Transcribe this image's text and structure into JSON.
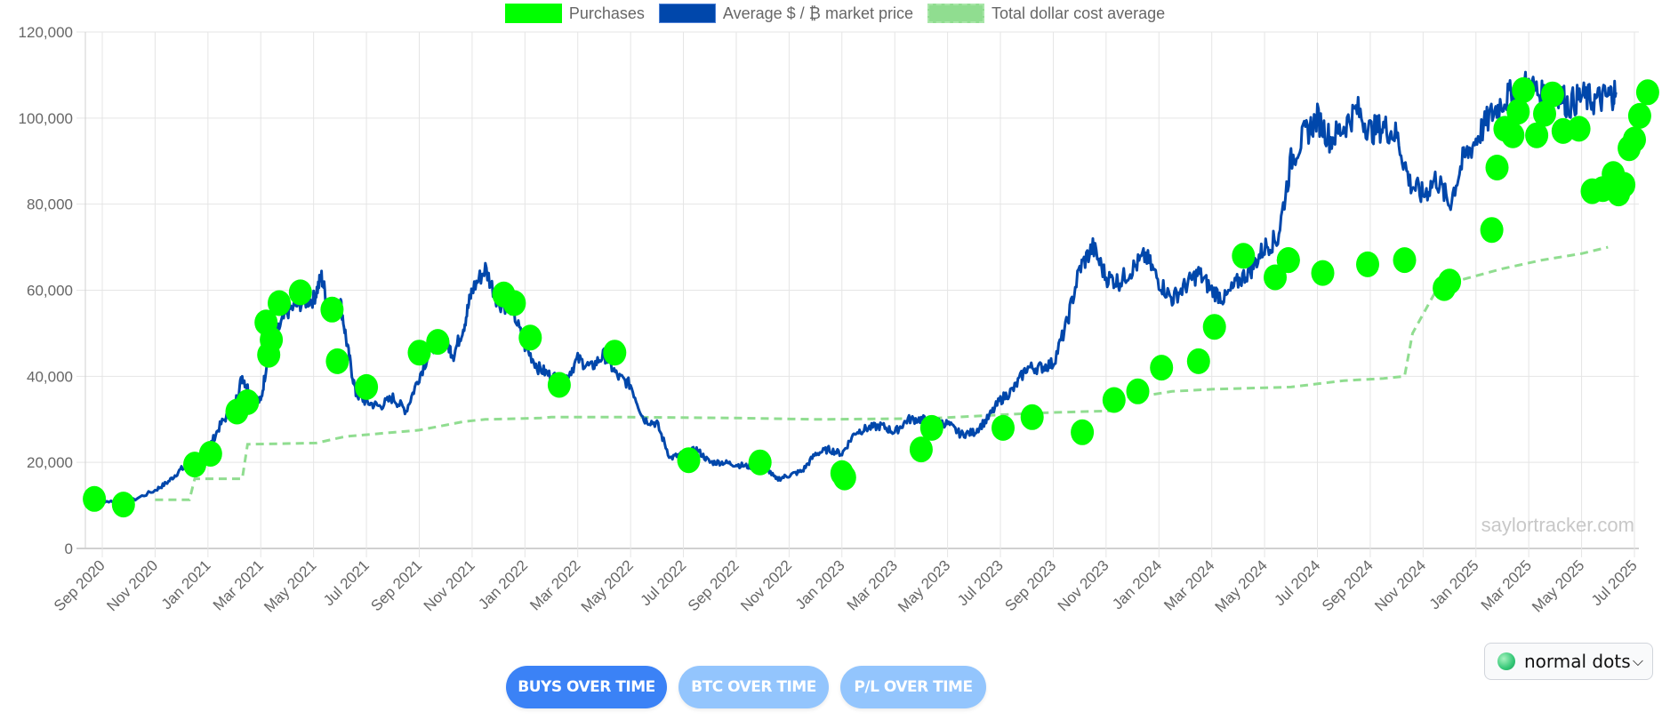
{
  "legend": {
    "purchases": "Purchases",
    "avg_price": "Average $ / ₿ market price",
    "dca": "Total dollar cost average"
  },
  "watermark": "saylortracker.com",
  "buttons": {
    "buys": "BUYS OVER TIME",
    "btc": "BTC OVER TIME",
    "pl": "P/L OVER TIME"
  },
  "dropdown": {
    "selected": "normal dots"
  },
  "colors": {
    "purchases": "#00ff00",
    "price_line": "#0047ab",
    "dca_line": "#90dd90",
    "grid": "#e5e5e5",
    "button_active": "#3b82f6",
    "button_inactive": "#93c5fd"
  },
  "chart_data": {
    "type": "line",
    "title": "",
    "xlabel": "",
    "ylabel": "",
    "ylim": [
      0,
      120000
    ],
    "y_ticks": [
      "0",
      "20,000",
      "40,000",
      "60,000",
      "80,000",
      "100,000",
      "120,000"
    ],
    "x_ticks": [
      "Sep 2020",
      "Nov 2020",
      "Jan 2021",
      "Mar 2021",
      "May 2021",
      "Jul 2021",
      "Sep 2021",
      "Nov 2021",
      "Jan 2022",
      "Mar 2022",
      "May 2022",
      "Jul 2022",
      "Sep 2022",
      "Nov 2022",
      "Jan 2023",
      "Mar 2023",
      "May 2023",
      "Jul 2023",
      "Sep 2023",
      "Nov 2023",
      "Jan 2024",
      "Mar 2024",
      "May 2024",
      "Jul 2024",
      "Sep 2024",
      "Nov 2024",
      "Jan 2025",
      "Mar 2025",
      "May 2025",
      "Jul 2025"
    ],
    "grid": true,
    "legend_position": "top",
    "series": [
      {
        "name": "Average $ / ₿ market price",
        "type": "line",
        "months_from_sep2020": [
          -0.7,
          0,
          1,
          2,
          2.5,
          3,
          3.5,
          4,
          4.5,
          5,
          5.3,
          5.6,
          6,
          6.3,
          6.6,
          7,
          7.5,
          8,
          8.3,
          8.6,
          9,
          9.3,
          9.6,
          10,
          10.5,
          11,
          11.5,
          12,
          12.5,
          13,
          13.3,
          13.7,
          14,
          14.5,
          15,
          15.5,
          16,
          16.5,
          17,
          17.5,
          18,
          18.5,
          19,
          19.5,
          20,
          20.5,
          21,
          21.5,
          22,
          22.5,
          23,
          23.5,
          24,
          24.5,
          25,
          25.5,
          26,
          26.5,
          27,
          27.5,
          28,
          28.5,
          29,
          29.5,
          30,
          30.5,
          31,
          31.5,
          32,
          32.5,
          33,
          33.5,
          34,
          34.5,
          35,
          35.5,
          36,
          36.5,
          37,
          37.5,
          38,
          38.5,
          39,
          39.5,
          40,
          40.5,
          41,
          41.5,
          42,
          42.5,
          43,
          43.5,
          44,
          44.5,
          45,
          45.5,
          46,
          46.5,
          47,
          47.5,
          48,
          48.5,
          49,
          49.5,
          50,
          50.5,
          51,
          51.5,
          52,
          52.5,
          53,
          53.5,
          54,
          54.5,
          55,
          55.5,
          56,
          56.5,
          57,
          57.3
        ],
        "values": [
          11500,
          11000,
          10800,
          13500,
          15500,
          18500,
          19000,
          23000,
          29000,
          33000,
          40000,
          36000,
          34000,
          46000,
          50000,
          55000,
          57000,
          58000,
          63000,
          55000,
          58000,
          46000,
          36000,
          34000,
          33000,
          35000,
          32000,
          40000,
          47000,
          48000,
          45000,
          52000,
          60000,
          65000,
          57000,
          56000,
          47000,
          42000,
          40000,
          39000,
          44000,
          42000,
          45000,
          40000,
          38000,
          30000,
          29000,
          21000,
          22000,
          23000,
          20000,
          20000,
          19500,
          19000,
          20000,
          16000,
          17000,
          18000,
          22000,
          23000,
          22000,
          27000,
          28000,
          28500,
          27000,
          30000,
          30000,
          29500,
          29000,
          26500,
          27000,
          30000,
          34500,
          37000,
          42000,
          42000,
          43000,
          52000,
          65000,
          70000,
          63000,
          62000,
          65000,
          68000,
          62000,
          58000,
          61000,
          64000,
          60000,
          58000,
          62000,
          65000,
          70000,
          72000,
          90000,
          96000,
          100000,
          95000,
          98000,
          102000,
          97000,
          98000,
          96000,
          85000,
          82000,
          86000,
          80000,
          90000,
          95000,
          100000,
          104000,
          106000,
          108000,
          105000,
          107000,
          103000,
          105000,
          104000,
          105000,
          106000
        ],
        "color": "#0047ab"
      },
      {
        "name": "Total dollar cost average",
        "type": "step-dashed",
        "months_from_sep2020": [
          2,
          3.3,
          3.5,
          5.3,
          5.5,
          8.1,
          9.2,
          12,
          13.7,
          14.5,
          16.6,
          17,
          20,
          24,
          27,
          31.3,
          34.5,
          35.5,
          38.3,
          38.7,
          39.5,
          40.5,
          42,
          45,
          47,
          48.5,
          49.3,
          49.6,
          50.5,
          51.5,
          53,
          54.5,
          56,
          57
        ],
        "values": [
          11300,
          11300,
          16200,
          16200,
          24200,
          24500,
          26000,
          27500,
          29500,
          30000,
          30300,
          30500,
          30500,
          30300,
          30000,
          30200,
          31200,
          31500,
          32000,
          35200,
          35500,
          36500,
          37000,
          37500,
          39000,
          39500,
          40000,
          50000,
          60000,
          62500,
          65000,
          67000,
          68500,
          70000
        ],
        "color": "#90dd90"
      },
      {
        "name": "Purchases",
        "type": "scatter",
        "months_from_sep2020": [
          -0.3,
          0.8,
          3.5,
          4.1,
          5.1,
          5.5,
          6.2,
          6.3,
          6.4,
          6.7,
          7.5,
          8.7,
          8.9,
          10.0,
          12.0,
          12.7,
          15.2,
          15.6,
          16.2,
          17.3,
          19.4,
          22.2,
          24.9,
          28.0,
          28.1,
          31.0,
          31.4,
          34.1,
          35.2,
          37.1,
          38.3,
          39.2,
          40.1,
          41.5,
          42.1,
          43.2,
          44.4,
          44.9,
          44.9,
          46.2,
          47.9,
          49.3,
          50.8,
          51.0,
          52.6,
          52.8,
          53.1,
          53.4,
          53.6,
          53.8,
          54.3,
          54.6,
          54.9,
          55.3,
          55.9,
          56.4,
          56.8,
          57.2,
          57.4,
          57.6,
          57.8,
          58.0,
          58.2,
          58.5
        ],
        "values": [
          11500,
          10200,
          19500,
          22000,
          31800,
          34000,
          52500,
          45000,
          48500,
          57000,
          59500,
          55500,
          43500,
          37500,
          45500,
          48000,
          59000,
          57000,
          49000,
          38000,
          45500,
          20500,
          20000,
          17500,
          16500,
          23000,
          28000,
          28000,
          30500,
          27000,
          34500,
          36500,
          42000,
          43500,
          51500,
          68000,
          63000,
          67000,
          67000,
          64000,
          66000,
          67000,
          60500,
          62000,
          74000,
          88500,
          97500,
          96000,
          101500,
          106500,
          96000,
          101000,
          105500,
          97000,
          97500,
          83000,
          83500,
          87000,
          82500,
          84500,
          93000,
          95000,
          100500,
          106000
        ],
        "color": "#00ff00"
      }
    ]
  }
}
